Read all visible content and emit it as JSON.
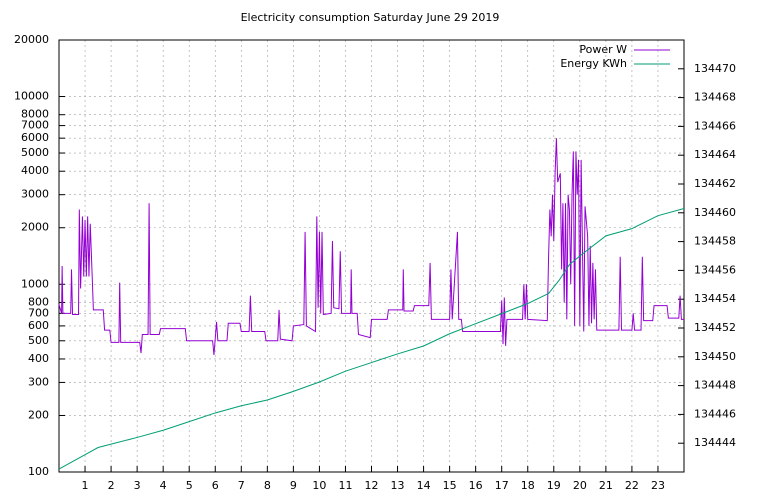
{
  "chart_data": {
    "type": "line",
    "title": "Electricity consumption Saturday June 29 2019",
    "xlim": [
      0,
      24
    ],
    "xticks": [
      1,
      2,
      3,
      4,
      5,
      6,
      7,
      8,
      9,
      10,
      11,
      12,
      13,
      14,
      15,
      16,
      17,
      18,
      19,
      20,
      21,
      22,
      23
    ],
    "ylim": [
      100,
      20000
    ],
    "yticks": [
      100,
      200,
      300,
      400,
      500,
      600,
      700,
      800,
      1000,
      2000,
      3000,
      4000,
      5000,
      6000,
      7000,
      8000,
      10000,
      20000
    ],
    "y_log_scale": true,
    "y2lim": [
      134442,
      134472
    ],
    "y2ticks": [
      134444,
      134446,
      134448,
      134450,
      134452,
      134454,
      134456,
      134458,
      134460,
      134462,
      134464,
      134466,
      134468,
      134470
    ],
    "grid": true,
    "legend_position": "top-right",
    "series": [
      {
        "name": "Power W",
        "color": "#9400d3",
        "x": [
          0,
          0.1,
          0.12,
          0.15,
          0.45,
          0.48,
          0.52,
          0.75,
          0.78,
          0.83,
          0.9,
          0.95,
          1.0,
          1.05,
          1.1,
          1.15,
          1.2,
          1.28,
          1.32,
          1.7,
          1.75,
          1.95,
          2.0,
          2.3,
          2.33,
          2.37,
          3.1,
          3.15,
          3.2,
          3.42,
          3.46,
          3.5,
          3.85,
          3.9,
          4.85,
          4.9,
          5.9,
          5.95,
          6.05,
          6.1,
          6.45,
          6.5,
          6.95,
          7.0,
          7.3,
          7.35,
          7.4,
          7.9,
          7.95,
          8.4,
          8.45,
          8.5,
          8.95,
          9.0,
          9.4,
          9.45,
          9.5,
          9.85,
          9.9,
          9.95,
          10.0,
          10.05,
          10.1,
          10.15,
          10.45,
          10.5,
          10.55,
          10.75,
          10.8,
          10.85,
          11.2,
          11.22,
          11.25,
          11.45,
          11.5,
          11.95,
          12.0,
          12.6,
          12.65,
          13.2,
          13.22,
          13.25,
          13.6,
          13.65,
          14.2,
          14.25,
          14.3,
          15.0,
          15.05,
          15.1,
          15.3,
          15.35,
          15.45,
          15.5,
          16.95,
          17.0,
          17.05,
          17.1,
          17.15,
          17.2,
          17.8,
          17.85,
          17.9,
          17.95,
          18.0,
          18.75,
          18.8,
          18.85,
          18.9,
          18.95,
          19.0,
          19.05,
          19.1,
          19.15,
          19.25,
          19.3,
          19.35,
          19.4,
          19.45,
          19.5,
          19.55,
          19.6,
          19.65,
          19.7,
          19.75,
          19.8,
          19.85,
          19.9,
          19.95,
          20.0,
          20.05,
          20.15,
          20.2,
          20.3,
          20.35,
          20.4,
          20.45,
          20.5,
          20.55,
          20.6,
          20.65,
          21.5,
          21.55,
          21.6,
          22.0,
          22.05,
          22.1,
          22.35,
          22.4,
          22.45,
          22.8,
          22.85,
          23.35,
          23.4,
          23.8,
          23.85,
          23.9,
          24
        ],
        "values": [
          780,
          700,
          1250,
          700,
          700,
          1200,
          690,
          690,
          2500,
          950,
          2300,
          1100,
          2200,
          1100,
          2300,
          1100,
          2100,
          1050,
          730,
          730,
          570,
          570,
          490,
          490,
          1020,
          490,
          490,
          430,
          540,
          540,
          2700,
          540,
          540,
          580,
          580,
          500,
          500,
          420,
          630,
          500,
          500,
          620,
          620,
          560,
          560,
          870,
          560,
          560,
          500,
          500,
          730,
          510,
          500,
          600,
          610,
          1900,
          600,
          560,
          2300,
          750,
          1900,
          700,
          1900,
          690,
          700,
          1700,
          750,
          740,
          1500,
          700,
          700,
          1200,
          700,
          700,
          540,
          520,
          650,
          650,
          730,
          730,
          1200,
          720,
          720,
          770,
          770,
          1300,
          650,
          650,
          1200,
          650,
          1900,
          650,
          650,
          560,
          560,
          820,
          480,
          850,
          470,
          650,
          650,
          1000,
          650,
          1000,
          650,
          640,
          1400,
          2500,
          1800,
          3000,
          1700,
          3900,
          6000,
          3500,
          3900,
          1200,
          2700,
          800,
          2700,
          650,
          3000,
          2500,
          1000,
          3000,
          5100,
          600,
          5100,
          3000,
          4600,
          600,
          4600,
          560,
          2600,
          1800,
          600,
          1600,
          620,
          1300,
          650,
          1200,
          570,
          570,
          1400,
          570,
          570,
          700,
          570,
          570,
          1400,
          640,
          640,
          770,
          770,
          660,
          660,
          870,
          650,
          650
        ]
      },
      {
        "name": "Energy KWh",
        "color": "#009e73",
        "axis": "y2",
        "x": [
          0,
          1,
          1.5,
          3,
          4,
          5,
          6,
          7,
          8,
          9,
          10,
          11,
          12,
          13,
          14,
          15,
          16,
          17,
          18,
          18.8,
          19.2,
          19.6,
          20,
          21,
          22,
          23,
          24
        ],
        "values": [
          134442.2,
          134443.2,
          134443.7,
          134444.4,
          134444.9,
          134445.5,
          134446.1,
          134446.6,
          134447,
          134447.6,
          134448.25,
          134449,
          134449.6,
          134450.2,
          134450.75,
          134451.6,
          134452.3,
          134453,
          134453.7,
          134454.4,
          134455.3,
          134456.4,
          134457,
          134458.4,
          134458.9,
          134459.8,
          134460.3
        ]
      }
    ]
  }
}
